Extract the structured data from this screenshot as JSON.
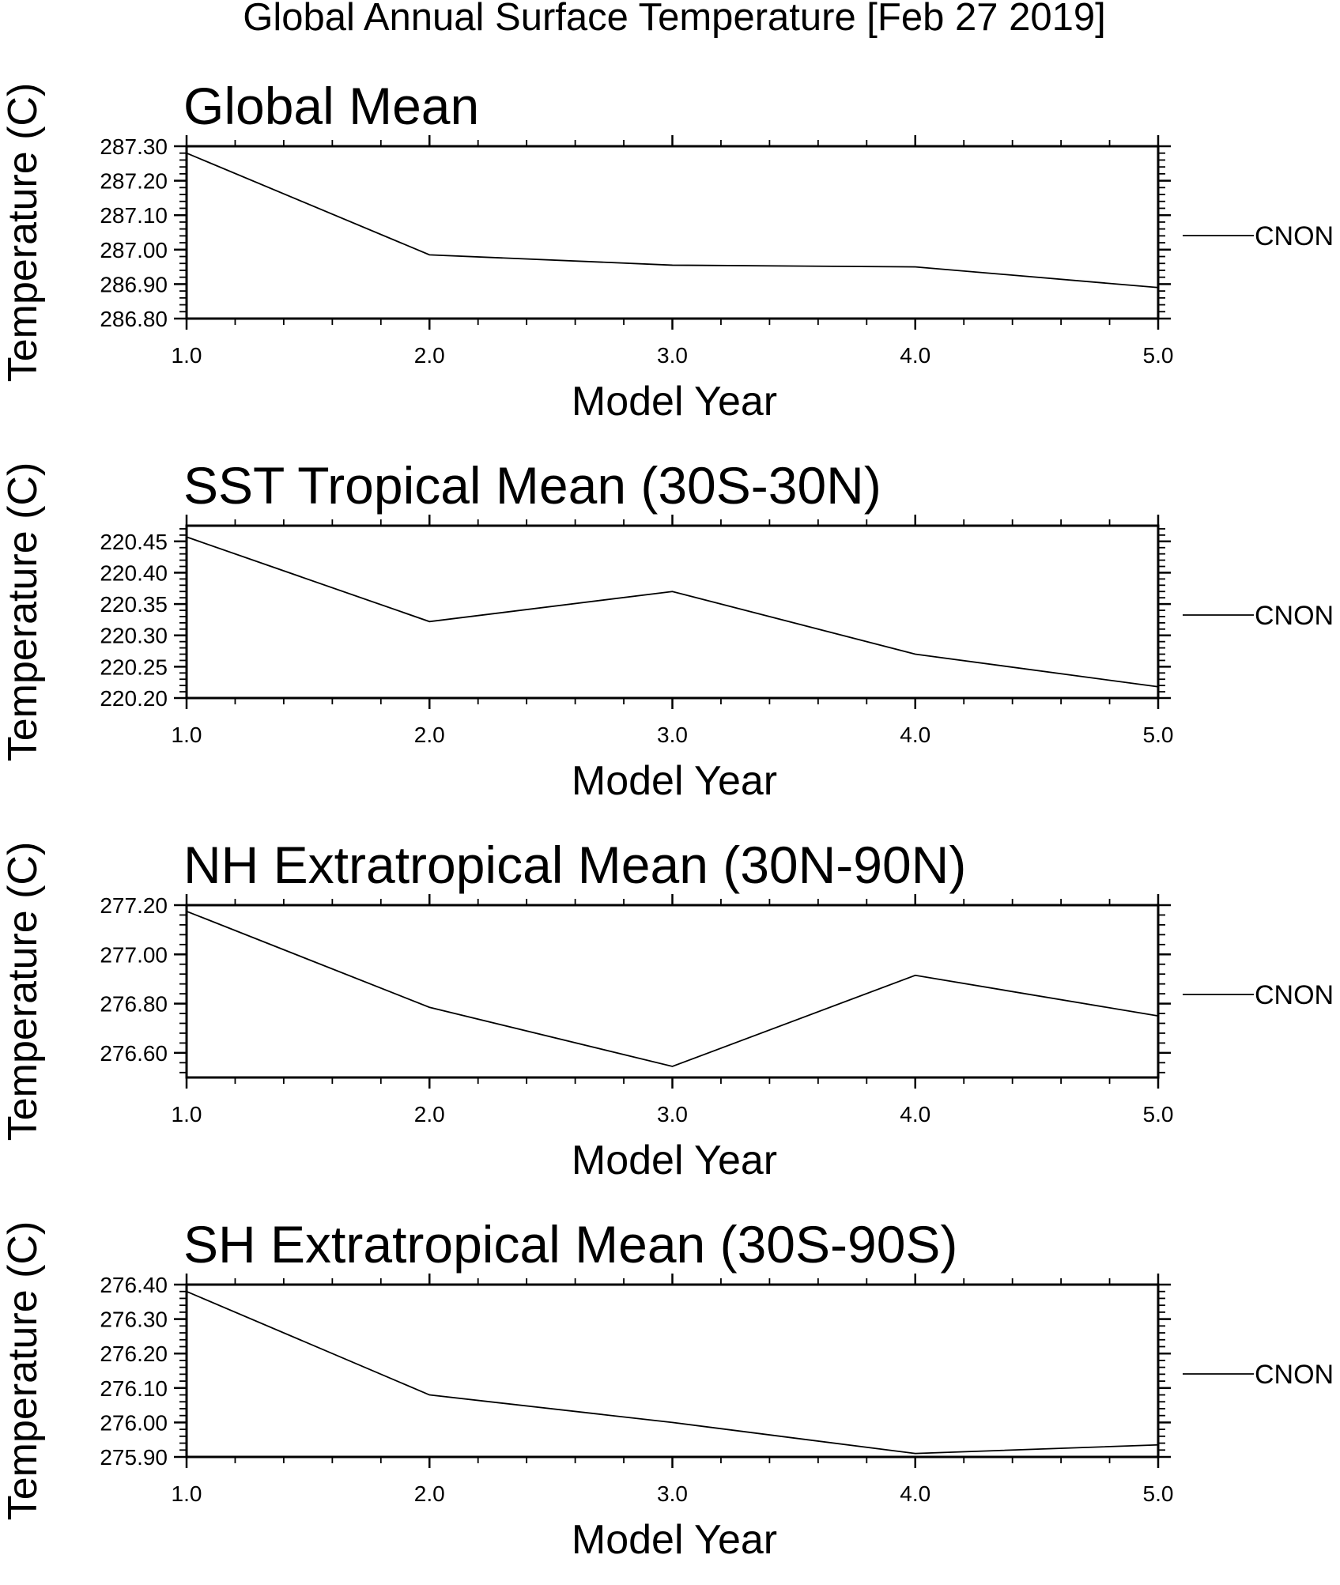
{
  "title": "Global Annual Surface Temperature [Feb 27 2019]",
  "chart_data": [
    {
      "type": "line",
      "title": "Global Mean",
      "xlabel": "Model Year",
      "ylabel": "Temperature (C)",
      "x": [
        1.0,
        2.0,
        3.0,
        4.0,
        5.0
      ],
      "xlim": [
        1.0,
        5.0
      ],
      "xticks": [
        "1.0",
        "2.0",
        "3.0",
        "4.0",
        "5.0"
      ],
      "ylim": [
        286.8,
        287.3
      ],
      "yticks": [
        "287.30",
        "287.20",
        "287.10",
        "287.00",
        "286.90",
        "286.80"
      ],
      "series": [
        {
          "name": "CNON",
          "values": [
            287.28,
            286.985,
            286.955,
            286.95,
            286.89
          ]
        }
      ],
      "legend_position": "right",
      "grid": false
    },
    {
      "type": "line",
      "title": "SST Tropical Mean (30S-30N)",
      "xlabel": "Model Year",
      "ylabel": "Temperature (C)",
      "x": [
        1.0,
        2.0,
        3.0,
        4.0,
        5.0
      ],
      "xlim": [
        1.0,
        5.0
      ],
      "xticks": [
        "1.0",
        "2.0",
        "3.0",
        "4.0",
        "5.0"
      ],
      "ylim": [
        220.2,
        220.475
      ],
      "yticks": [
        "220.45",
        "220.40",
        "220.35",
        "220.30",
        "220.25",
        "220.20"
      ],
      "series": [
        {
          "name": "CNON",
          "values": [
            220.457,
            220.322,
            220.37,
            220.27,
            220.218
          ]
        }
      ],
      "legend_position": "right",
      "grid": false
    },
    {
      "type": "line",
      "title": "NH Extratropical Mean (30N-90N)",
      "xlabel": "Model Year",
      "ylabel": "Temperature (C)",
      "x": [
        1.0,
        2.0,
        3.0,
        4.0,
        5.0
      ],
      "xlim": [
        1.0,
        5.0
      ],
      "xticks": [
        "1.0",
        "2.0",
        "3.0",
        "4.0",
        "5.0"
      ],
      "ylim": [
        276.5,
        277.2
      ],
      "yticks": [
        "277.20",
        "277.00",
        "276.80",
        "276.60"
      ],
      "series": [
        {
          "name": "CNON",
          "values": [
            277.175,
            276.785,
            276.545,
            276.915,
            276.75
          ]
        }
      ],
      "legend_position": "right",
      "grid": false
    },
    {
      "type": "line",
      "title": "SH Extratropical Mean (30S-90S)",
      "xlabel": "Model Year",
      "ylabel": "Temperature (C)",
      "x": [
        1.0,
        2.0,
        3.0,
        4.0,
        5.0
      ],
      "xlim": [
        1.0,
        5.0
      ],
      "xticks": [
        "1.0",
        "2.0",
        "3.0",
        "4.0",
        "5.0"
      ],
      "ylim": [
        275.9,
        276.4
      ],
      "yticks": [
        "276.40",
        "276.30",
        "276.20",
        "276.10",
        "276.00",
        "275.90"
      ],
      "series": [
        {
          "name": "CNON",
          "values": [
            276.38,
            276.08,
            276.0,
            275.91,
            275.935
          ]
        }
      ],
      "legend_position": "right",
      "grid": false
    }
  ]
}
